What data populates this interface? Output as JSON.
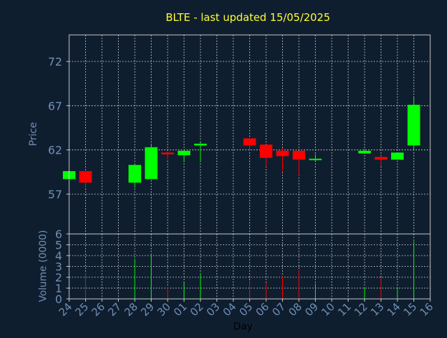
{
  "chart_data": {
    "type": "candlestick",
    "title": "BLTE - last updated 15/05/2025",
    "xlabel": "Day",
    "price_panel": {
      "ylabel": "Price",
      "ylim": [
        52.5,
        75.0
      ],
      "yticks": [
        57,
        62,
        67,
        72
      ]
    },
    "volume_panel": {
      "ylabel": "Volume (0000)",
      "ylim": [
        0,
        6
      ],
      "yticks": [
        0,
        1,
        2,
        3,
        4,
        5,
        6
      ]
    },
    "grid": true,
    "x_ticks": [
      "24",
      "25",
      "26",
      "27",
      "28",
      "29",
      "30",
      "01",
      "02",
      "03",
      "04",
      "05",
      "06",
      "07",
      "08",
      "09",
      "10",
      "11",
      "12",
      "13",
      "14",
      "15",
      "16"
    ],
    "candles": [
      {
        "day": "24",
        "open": 58.7,
        "high": 59.6,
        "low": 58.7,
        "close": 59.6,
        "volume": 0
      },
      {
        "day": "25",
        "open": 59.6,
        "high": 59.6,
        "low": 57.7,
        "close": 58.3,
        "volume": 2.4
      },
      {
        "day": "28",
        "open": 58.3,
        "high": 60.3,
        "low": 57.7,
        "close": 60.3,
        "volume": 3.7
      },
      {
        "day": "29",
        "open": 58.7,
        "high": 62.7,
        "low": 58.7,
        "close": 62.3,
        "volume": 4.2
      },
      {
        "day": "30",
        "open": 61.7,
        "high": 61.8,
        "low": 60.9,
        "close": 61.5,
        "volume": 1.1
      },
      {
        "day": "01",
        "open": 61.4,
        "high": 62.0,
        "low": 60.6,
        "close": 61.9,
        "volume": 1.5
      },
      {
        "day": "02",
        "open": 62.5,
        "high": 63.0,
        "low": 60.6,
        "close": 62.7,
        "volume": 2.4
      },
      {
        "day": "05",
        "open": 63.3,
        "high": 63.3,
        "low": 61.9,
        "close": 62.5,
        "volume": 1.7
      },
      {
        "day": "06",
        "open": 62.6,
        "high": 62.6,
        "low": 60.1,
        "close": 61.1,
        "volume": 1.5
      },
      {
        "day": "07",
        "open": 61.9,
        "high": 62.2,
        "low": 59.6,
        "close": 61.3,
        "volume": 2.1
      },
      {
        "day": "08",
        "open": 61.9,
        "high": 61.9,
        "low": 59.1,
        "close": 60.9,
        "volume": 2.7
      },
      {
        "day": "09",
        "open": 60.9,
        "high": 61.5,
        "low": 60.8,
        "close": 61.0,
        "volume": 1.4
      },
      {
        "day": "12",
        "open": 61.6,
        "high": 62.1,
        "low": 61.6,
        "close": 61.9,
        "volume": 1.1
      },
      {
        "day": "13",
        "open": 61.2,
        "high": 61.3,
        "low": 60.2,
        "close": 60.9,
        "volume": 2.0
      },
      {
        "day": "14",
        "open": 60.9,
        "high": 61.7,
        "low": 60.9,
        "close": 61.7,
        "volume": 1.1
      },
      {
        "day": "15",
        "open": 62.5,
        "high": 67.9,
        "low": 62.0,
        "close": 67.1,
        "volume": 5.3
      }
    ],
    "colors": {
      "background": "#0f1e2f",
      "title": "#ffff33",
      "axis_text": "#6f90b4",
      "grid": "#c8c8c8",
      "up": "#00ff00",
      "down": "#ff0000"
    }
  }
}
